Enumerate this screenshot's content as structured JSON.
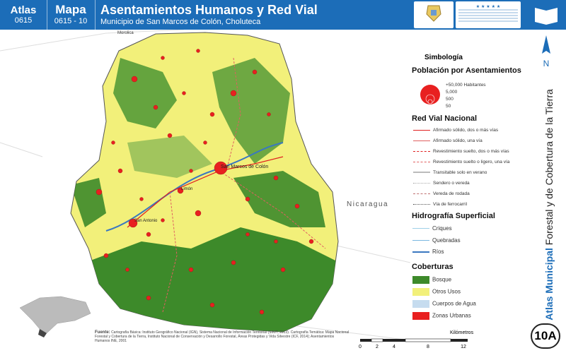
{
  "header": {
    "atlas_label": "Atlas",
    "atlas_code": "0615",
    "map_label": "Mapa",
    "map_code": "0615 - 10",
    "title": "Asentamientos Humanos y Red Vial",
    "subtitle": "Municipio de San Marcos de Colón, Choluteca",
    "logo1_text": "GOBIERNO DE LA REPÚBLICA DE HONDURAS",
    "logo2_text": "INSTITUTO NACIONAL DE CONSERVACIÓN Y DESARROLLO FORESTAL, ÁREAS PROTEGIDAS Y VIDA SILVESTRE ICF"
  },
  "north_label": "N",
  "vertical_title_bold": "Atlas Municipal",
  "vertical_title_rest": " Forestal y de Cobertura de la Tierra",
  "badge": "10A",
  "map_labels": {
    "morolica": "Morolica",
    "nicaragua": "Nicaragua",
    "san_marcos": "San Marcos de Colón",
    "el_fisit": "Limón",
    "el_cuadro": "San Antonio"
  },
  "legend": {
    "title": "Simbología",
    "population_title": "Población por Asentamientos",
    "population_sizes": [
      "+50,000 Habitantes",
      "5,000",
      "500",
      "50"
    ],
    "road_title": "Red Vial Nacional",
    "roads": [
      {
        "label": "Afirmado sólido, dos o más vías",
        "color": "#e02020",
        "style": "solid"
      },
      {
        "label": "Afirmado sólido, una vía",
        "color": "#e06060",
        "style": "solid"
      },
      {
        "label": "Revestimiento suelto, dos o más vías",
        "color": "#e02020",
        "style": "dashed"
      },
      {
        "label": "Revestimiento suelto o ligero, una vía",
        "color": "#e06060",
        "style": "dashed"
      },
      {
        "label": "Transitable solo en verano",
        "color": "#aaaaaa",
        "style": "solid"
      },
      {
        "label": "Sendero o vereda",
        "color": "#aaaaaa",
        "style": "dotted"
      },
      {
        "label": "Vereda de rodada",
        "color": "#c07070",
        "style": "dashed"
      },
      {
        "label": "Vía de ferrocarril",
        "color": "#555555",
        "style": "dotted"
      }
    ],
    "hydro_title": "Hidrografía Superficial",
    "hydro": [
      {
        "label": "Criques",
        "color": "#9ed0e8"
      },
      {
        "label": "Quebradas",
        "color": "#7ab8e0"
      },
      {
        "label": "Ríos",
        "color": "#3a78c0"
      }
    ],
    "cover_title": "Coberturas",
    "covers": [
      {
        "label": "Bosque",
        "color": "#3d8a2a"
      },
      {
        "label": "Otros Usos",
        "color": "#f2f07a"
      },
      {
        "label": "Cuerpos de Agua",
        "color": "#c6dcef"
      },
      {
        "label": "Zonas Urbanas",
        "color": "#e82020"
      }
    ]
  },
  "source": {
    "label": "Fuente:",
    "text": "Cartografía Básica: Instituto Geográfico Nacional (IGN), Sistema Nacional de Información Territorial (SINIT, 2013). Cartografía Temática: Mapa Nacional Forestal y Cobertura de la Tierra, Instituto Nacional de Conservación y Desarrollo Forestal, Áreas Protegidas y Vida Silvestre (ICF, 2014); Asentamientos Humanos INE, 2001"
  },
  "scale": {
    "unit": "Kilómetros",
    "ticks": [
      "0",
      "2",
      "4",
      "8",
      "12"
    ]
  }
}
